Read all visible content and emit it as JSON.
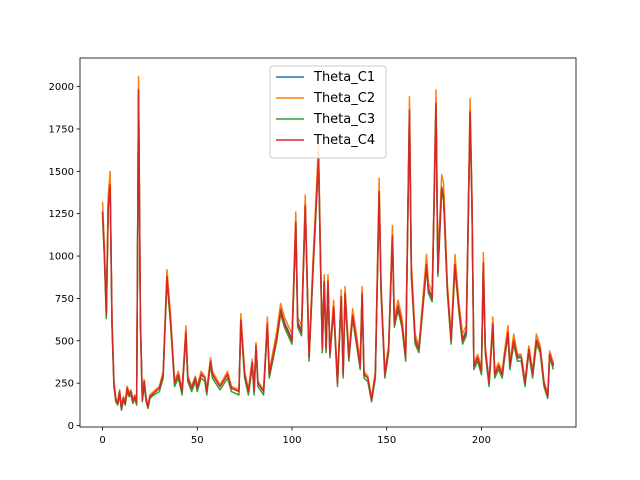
{
  "chart_data": {
    "type": "line",
    "x": [
      0,
      1,
      2,
      3,
      4,
      5,
      6,
      7,
      8,
      9,
      10,
      11,
      12,
      13,
      14,
      15,
      16,
      17,
      18,
      19,
      20,
      21,
      22,
      23,
      24,
      25,
      27,
      30,
      32,
      34,
      36,
      38,
      40,
      42,
      44,
      45,
      47,
      49,
      50,
      52,
      54,
      55,
      57,
      58,
      62,
      66,
      68,
      72,
      73,
      75,
      77,
      79,
      80,
      81,
      82,
      85,
      87,
      88,
      92,
      94,
      96,
      100,
      102,
      103,
      105,
      107,
      109,
      111,
      114,
      115,
      116,
      117,
      118,
      119,
      120,
      122,
      124,
      126,
      127,
      128,
      130,
      132,
      134,
      136,
      137,
      138,
      140,
      142,
      144,
      146,
      147,
      149,
      151,
      153,
      154,
      156,
      158,
      160,
      162,
      163,
      165,
      167,
      169,
      171,
      172,
      174,
      176,
      177,
      179,
      180,
      182,
      184,
      186,
      188,
      190,
      192,
      194,
      195,
      196,
      198,
      200,
      201,
      202,
      204,
      206,
      207,
      209,
      211,
      212,
      214,
      215,
      217,
      219,
      221,
      223,
      225,
      227,
      229,
      231,
      233,
      235,
      236,
      238
    ],
    "series": [
      {
        "name": "Theta_C1",
        "color": "#1f77b4",
        "values": [
          1270,
          1010,
          660,
          1310,
          1430,
          610,
          260,
          160,
          140,
          210,
          110,
          170,
          140,
          230,
          190,
          210,
          150,
          180,
          140,
          1990,
          610,
          160,
          270,
          160,
          120,
          180,
          200,
          230,
          310,
          890,
          610,
          260,
          310,
          210,
          560,
          290,
          230,
          290,
          230,
          310,
          290,
          210,
          390,
          310,
          240,
          310,
          230,
          210,
          630,
          310,
          210,
          380,
          210,
          480,
          260,
          210,
          610,
          310,
          530,
          690,
          610,
          510,
          1210,
          610,
          560,
          1310,
          410,
          910,
          1590,
          1010,
          460,
          860,
          460,
          860,
          430,
          710,
          260,
          770,
          310,
          790,
          410,
          660,
          510,
          360,
          790,
          310,
          290,
          160,
          310,
          1390,
          810,
          310,
          460,
          1130,
          610,
          710,
          610,
          410,
          1870,
          910,
          510,
          460,
          710,
          960,
          810,
          760,
          1910,
          910,
          1410,
          1360,
          810,
          510,
          960,
          710,
          510,
          560,
          1860,
          1310,
          360,
          410,
          330,
          970,
          460,
          260,
          610,
          310,
          360,
          310,
          410,
          560,
          360,
          510,
          410,
          410,
          260,
          460,
          310,
          510,
          460,
          260,
          180,
          430,
          360
        ]
      },
      {
        "name": "Theta_C2",
        "color": "#ff7f0e",
        "values": [
          1320,
          1060,
          690,
          1360,
          1500,
          640,
          260,
          160,
          140,
          210,
          110,
          170,
          140,
          230,
          190,
          210,
          150,
          180,
          140,
          2060,
          640,
          160,
          270,
          160,
          120,
          180,
          200,
          230,
          320,
          920,
          640,
          260,
          320,
          210,
          590,
          290,
          230,
          290,
          230,
          320,
          290,
          210,
          400,
          320,
          240,
          320,
          230,
          210,
          660,
          320,
          210,
          390,
          210,
          490,
          260,
          210,
          640,
          320,
          560,
          720,
          640,
          540,
          1260,
          640,
          590,
          1360,
          420,
          960,
          1660,
          1060,
          470,
          890,
          470,
          890,
          440,
          740,
          260,
          800,
          320,
          820,
          420,
          690,
          540,
          370,
          820,
          320,
          290,
          160,
          320,
          1460,
          840,
          320,
          470,
          1180,
          640,
          740,
          640,
          420,
          1940,
          960,
          540,
          470,
          740,
          1010,
          840,
          790,
          1980,
          960,
          1480,
          1430,
          840,
          540,
          1010,
          740,
          540,
          590,
          1930,
          1360,
          370,
          420,
          340,
          1020,
          470,
          260,
          640,
          320,
          370,
          320,
          420,
          590,
          370,
          540,
          420,
          420,
          260,
          470,
          320,
          540,
          470,
          260,
          180,
          440,
          370
        ]
      },
      {
        "name": "Theta_C3",
        "color": "#2ca02c",
        "values": [
          1240,
          980,
          630,
          1280,
          1400,
          580,
          230,
          140,
          120,
          180,
          90,
          150,
          120,
          200,
          170,
          180,
          130,
          160,
          120,
          1960,
          580,
          140,
          240,
          140,
          100,
          160,
          180,
          200,
          280,
          860,
          580,
          230,
          280,
          180,
          530,
          260,
          200,
          260,
          200,
          280,
          260,
          180,
          360,
          280,
          210,
          280,
          200,
          180,
          600,
          280,
          180,
          350,
          180,
          450,
          230,
          180,
          580,
          280,
          500,
          660,
          580,
          480,
          1180,
          580,
          530,
          1280,
          380,
          880,
          1560,
          980,
          430,
          830,
          430,
          830,
          400,
          680,
          230,
          740,
          280,
          760,
          380,
          630,
          480,
          330,
          760,
          280,
          260,
          140,
          280,
          1360,
          780,
          280,
          430,
          1100,
          580,
          680,
          580,
          380,
          1840,
          880,
          480,
          430,
          680,
          930,
          780,
          730,
          1880,
          880,
          1380,
          1330,
          780,
          480,
          930,
          680,
          480,
          530,
          1830,
          1280,
          330,
          380,
          300,
          940,
          430,
          230,
          580,
          280,
          330,
          280,
          380,
          530,
          330,
          480,
          380,
          380,
          230,
          430,
          280,
          480,
          430,
          230,
          160,
          400,
          330
        ]
      },
      {
        "name": "Theta_C4",
        "color": "#d62728",
        "values": [
          1260,
          1000,
          650,
          1300,
          1420,
          600,
          250,
          150,
          130,
          200,
          100,
          160,
          130,
          220,
          180,
          200,
          140,
          170,
          130,
          1980,
          600,
          150,
          260,
          150,
          110,
          170,
          190,
          220,
          300,
          880,
          600,
          250,
          300,
          200,
          550,
          280,
          220,
          280,
          220,
          300,
          280,
          200,
          380,
          300,
          230,
          300,
          220,
          200,
          620,
          300,
          200,
          370,
          200,
          470,
          250,
          200,
          600,
          300,
          520,
          680,
          600,
          500,
          1200,
          600,
          550,
          1300,
          400,
          900,
          1580,
          1000,
          450,
          850,
          450,
          850,
          420,
          700,
          250,
          760,
          300,
          780,
          400,
          650,
          500,
          350,
          780,
          300,
          280,
          150,
          300,
          1380,
          800,
          300,
          450,
          1120,
          600,
          700,
          600,
          400,
          1860,
          900,
          500,
          450,
          700,
          950,
          800,
          750,
          1900,
          900,
          1400,
          1350,
          800,
          500,
          950,
          700,
          500,
          550,
          1850,
          1300,
          350,
          400,
          320,
          960,
          450,
          250,
          600,
          300,
          350,
          300,
          400,
          550,
          350,
          500,
          400,
          400,
          250,
          450,
          300,
          500,
          450,
          250,
          170,
          420,
          350
        ]
      }
    ],
    "xlim": [
      -11.9,
      249.9
    ],
    "xticks": [
      0,
      50,
      100,
      150,
      200
    ],
    "ylim": [
      -9,
      2169
    ],
    "yticks": [
      0,
      250,
      500,
      750,
      1000,
      1250,
      1500,
      1750,
      2000
    ],
    "legend": "upper center"
  }
}
